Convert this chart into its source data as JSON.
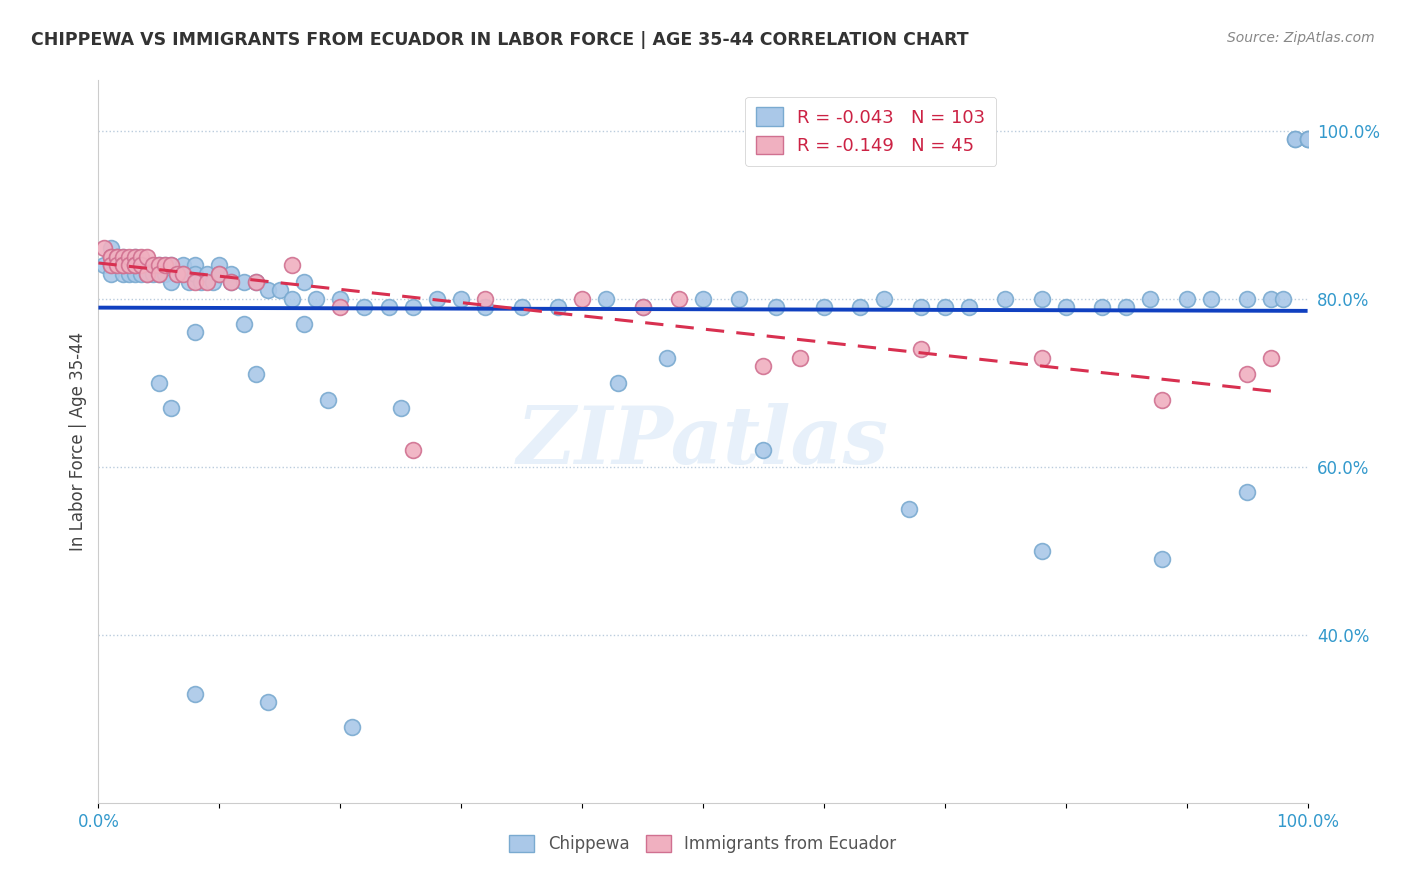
{
  "title": "CHIPPEWA VS IMMIGRANTS FROM ECUADOR IN LABOR FORCE | AGE 35-44 CORRELATION CHART",
  "source": "Source: ZipAtlas.com",
  "ylabel": "In Labor Force | Age 35-44",
  "xlim": [
    0.0,
    1.0
  ],
  "ylim": [
    0.2,
    1.06
  ],
  "ytick_labels": [
    "40.0%",
    "60.0%",
    "80.0%",
    "100.0%"
  ],
  "ytick_values": [
    0.4,
    0.6,
    0.8,
    1.0
  ],
  "legend_blue_R": "-0.043",
  "legend_blue_N": "103",
  "legend_pink_R": "-0.149",
  "legend_pink_N": "45",
  "blue_color": "#aac8e8",
  "blue_edge": "#7aaad0",
  "pink_color": "#f0b0c0",
  "pink_edge": "#d07090",
  "trend_blue_color": "#1040c0",
  "trend_pink_color": "#d83050",
  "watermark": "ZIPatlas",
  "chippewa_x": [
    0.005,
    0.01,
    0.01,
    0.01,
    0.01,
    0.015,
    0.015,
    0.02,
    0.02,
    0.02,
    0.025,
    0.025,
    0.03,
    0.03,
    0.03,
    0.03,
    0.035,
    0.035,
    0.04,
    0.04,
    0.04,
    0.045,
    0.045,
    0.05,
    0.05,
    0.055,
    0.055,
    0.06,
    0.06,
    0.065,
    0.07,
    0.07,
    0.075,
    0.08,
    0.08,
    0.085,
    0.09,
    0.095,
    0.1,
    0.1,
    0.11,
    0.11,
    0.12,
    0.13,
    0.14,
    0.15,
    0.16,
    0.17,
    0.18,
    0.2,
    0.22,
    0.24,
    0.26,
    0.28,
    0.3,
    0.32,
    0.35,
    0.38,
    0.42,
    0.45,
    0.5,
    0.53,
    0.56,
    0.6,
    0.63,
    0.65,
    0.68,
    0.7,
    0.72,
    0.75,
    0.78,
    0.8,
    0.83,
    0.85,
    0.87,
    0.9,
    0.92,
    0.95,
    0.97,
    0.98,
    0.99,
    0.99,
    1.0,
    1.0,
    1.0,
    0.05,
    0.06,
    0.08,
    0.12,
    0.17,
    0.13,
    0.19,
    0.25,
    0.43,
    0.47,
    0.55,
    0.67,
    0.78,
    0.88,
    0.95,
    0.08,
    0.14,
    0.21
  ],
  "chippewa_y": [
    0.84,
    0.86,
    0.84,
    0.84,
    0.83,
    0.85,
    0.84,
    0.85,
    0.84,
    0.83,
    0.84,
    0.83,
    0.85,
    0.84,
    0.84,
    0.83,
    0.84,
    0.83,
    0.84,
    0.84,
    0.83,
    0.84,
    0.83,
    0.84,
    0.83,
    0.84,
    0.83,
    0.84,
    0.82,
    0.83,
    0.84,
    0.83,
    0.82,
    0.84,
    0.83,
    0.82,
    0.83,
    0.82,
    0.84,
    0.83,
    0.83,
    0.82,
    0.82,
    0.82,
    0.81,
    0.81,
    0.8,
    0.82,
    0.8,
    0.8,
    0.79,
    0.79,
    0.79,
    0.8,
    0.8,
    0.79,
    0.79,
    0.79,
    0.8,
    0.79,
    0.8,
    0.8,
    0.79,
    0.79,
    0.79,
    0.8,
    0.79,
    0.79,
    0.79,
    0.8,
    0.8,
    0.79,
    0.79,
    0.79,
    0.8,
    0.8,
    0.8,
    0.8,
    0.8,
    0.8,
    0.99,
    0.99,
    0.99,
    0.99,
    0.99,
    0.7,
    0.67,
    0.76,
    0.77,
    0.77,
    0.71,
    0.68,
    0.67,
    0.7,
    0.73,
    0.62,
    0.55,
    0.5,
    0.49,
    0.57,
    0.33,
    0.32,
    0.29
  ],
  "ecuador_x": [
    0.005,
    0.01,
    0.01,
    0.01,
    0.015,
    0.015,
    0.015,
    0.02,
    0.02,
    0.02,
    0.025,
    0.025,
    0.03,
    0.03,
    0.03,
    0.035,
    0.035,
    0.04,
    0.04,
    0.045,
    0.05,
    0.05,
    0.055,
    0.06,
    0.065,
    0.07,
    0.08,
    0.09,
    0.1,
    0.11,
    0.13,
    0.16,
    0.2,
    0.26,
    0.32,
    0.4,
    0.48,
    0.58,
    0.68,
    0.78,
    0.88,
    0.95,
    0.97,
    0.45,
    0.55
  ],
  "ecuador_y": [
    0.86,
    0.85,
    0.85,
    0.84,
    0.85,
    0.85,
    0.84,
    0.85,
    0.84,
    0.84,
    0.85,
    0.84,
    0.85,
    0.84,
    0.84,
    0.85,
    0.84,
    0.85,
    0.83,
    0.84,
    0.84,
    0.83,
    0.84,
    0.84,
    0.83,
    0.83,
    0.82,
    0.82,
    0.83,
    0.82,
    0.82,
    0.84,
    0.79,
    0.62,
    0.8,
    0.8,
    0.8,
    0.73,
    0.74,
    0.73,
    0.68,
    0.71,
    0.73,
    0.79,
    0.72
  ]
}
